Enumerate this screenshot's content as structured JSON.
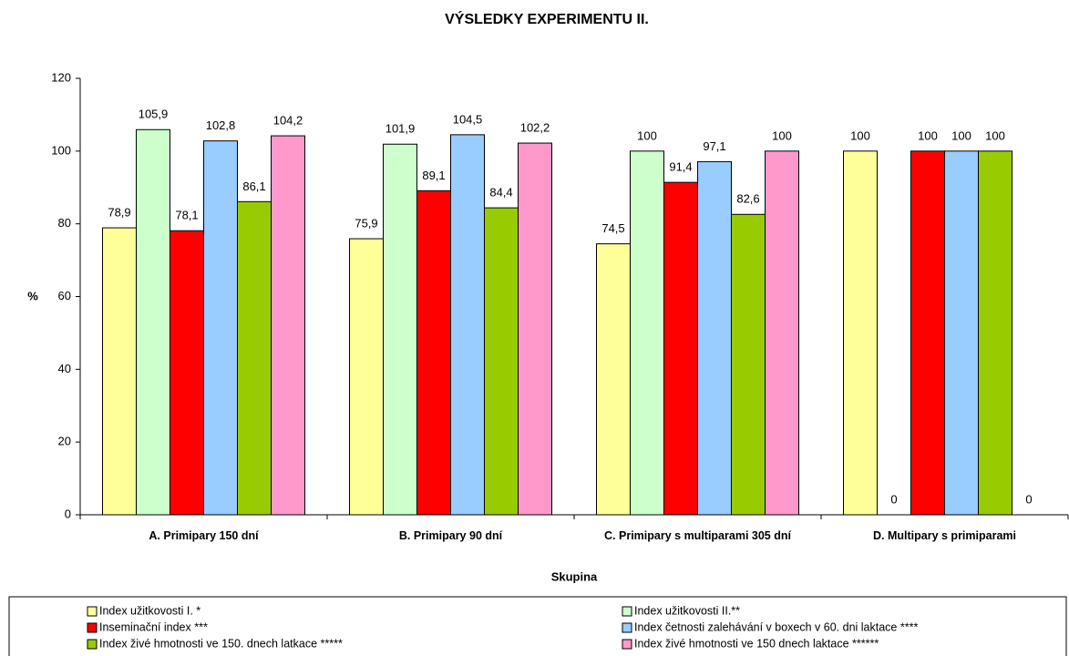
{
  "chart_data": {
    "type": "bar",
    "title": "VÝSLEDKY EXPERIMENTU II.",
    "x_label": "Skupina",
    "y_label": "%",
    "categories": [
      "A. Primipary 150 dní",
      "B. Primipary 90 dní",
      "C. Primipary s multiparami 305 dní",
      "D. Multipary s primiparami"
    ],
    "ylim": [
      0,
      120
    ],
    "yticks": [
      0,
      20,
      40,
      60,
      80,
      100,
      120
    ],
    "grid": false,
    "legend": "bottom",
    "series": [
      {
        "name": "Index užitkovosti I. *",
        "color": "#ffff99",
        "values": [
          78.9,
          75.9,
          74.5,
          100
        ],
        "value_labels": [
          "78,9",
          "75,9",
          "74,5",
          "100"
        ]
      },
      {
        "name": "Index užitkovosti II.**",
        "color": "#ccffcc",
        "values": [
          105.9,
          101.9,
          100,
          0
        ],
        "value_labels": [
          "105,9",
          "101,9",
          "100",
          "0"
        ]
      },
      {
        "name": "Inseminační index ***",
        "color": "#ff0000",
        "values": [
          78.1,
          89.1,
          91.4,
          100
        ],
        "value_labels": [
          "78,1",
          "89,1",
          "91,4",
          "100"
        ]
      },
      {
        "name": "Index četnosti zalehávání v boxech v 60. dni laktace ****",
        "color": "#99ccff",
        "values": [
          102.8,
          104.5,
          97.1,
          100
        ],
        "value_labels": [
          "102,8",
          "104,5",
          "97,1",
          "100"
        ]
      },
      {
        "name": "Index živé hmotnosti ve 150. dnech latkace *****",
        "color": "#99cc00",
        "values": [
          86.1,
          84.4,
          82.6,
          100
        ],
        "value_labels": [
          "86,1",
          "84,4",
          "82,6",
          "100"
        ]
      },
      {
        "name": "Index živé hmotnosti ve 150 dnech laktace ******",
        "color": "#ff99cc",
        "values": [
          104.2,
          102.2,
          100,
          0
        ],
        "value_labels": [
          "104,2",
          "102,2",
          "100",
          "0"
        ]
      }
    ]
  }
}
